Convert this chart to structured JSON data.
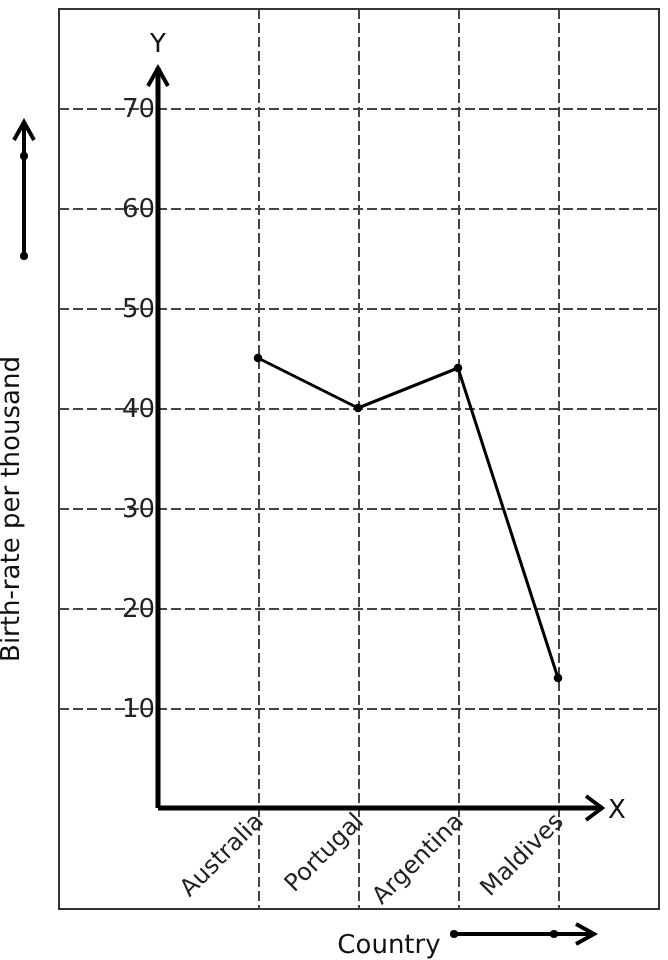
{
  "chart_data": {
    "type": "line",
    "xlabel": "Country",
    "ylabel": "Birth-rate per thousand",
    "annotations": [
      "X",
      "Y"
    ],
    "categories": [
      "Australia",
      "Portugal",
      "Argentina",
      "Maldives"
    ],
    "series": [
      {
        "color": "#000000",
        "values": [
          45,
          40,
          44,
          13
        ]
      }
    ],
    "ylim": [
      -10,
      80
    ],
    "yticks": [
      10,
      20,
      30,
      40,
      50,
      60,
      70
    ],
    "grid": true,
    "marker": "circle",
    "line_style": "solid"
  }
}
